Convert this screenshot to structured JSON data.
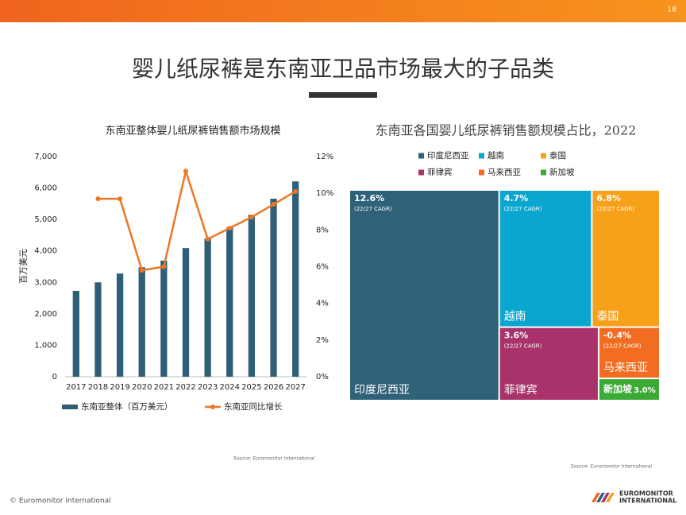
{
  "header": {
    "page_number": "18",
    "title": "婴儿纸尿裤是东南亚卫品市场最大的子品类"
  },
  "chart_data": [
    {
      "type": "bar_line",
      "title": "东南亚整体婴儿纸尿裤销售额市场规模",
      "y_label": "百万美元",
      "categories": [
        "2017",
        "2018",
        "2019",
        "2020",
        "2021",
        "2022",
        "2023",
        "2024",
        "2025",
        "2026",
        "2027"
      ],
      "series": [
        {
          "name": "东南亚整体（百万美元）",
          "type": "bar",
          "color": "#2e5f77",
          "values": [
            2730,
            3000,
            3280,
            3480,
            3690,
            4090,
            4390,
            4750,
            5150,
            5660,
            6210
          ]
        },
        {
          "name": "东南亚同比增长",
          "type": "line",
          "axis": "y2",
          "color": "#ee7623",
          "values": [
            null,
            9.7,
            9.7,
            5.8,
            6.0,
            11.2,
            7.5,
            8.1,
            8.7,
            9.4,
            10.1
          ]
        }
      ],
      "ylim": [
        0,
        7000
      ],
      "yticks": [
        0,
        {
          "value": 1000,
          "label": "1,000"
        },
        {
          "value": 2000,
          "label": "2,000"
        },
        {
          "value": 3000,
          "label": "3,000"
        },
        {
          "value": 4000,
          "label": "4,000"
        },
        {
          "value": 5000,
          "label": "5,000"
        },
        {
          "value": 6000,
          "label": "6,000"
        },
        {
          "value": 7000,
          "label": "7,000"
        }
      ],
      "y2lim": [
        0,
        12
      ],
      "y2ticks": [
        {
          "value": 0,
          "label": "0%"
        },
        {
          "value": 2,
          "label": "2%"
        },
        {
          "value": 4,
          "label": "4%"
        },
        {
          "value": 6,
          "label": "6%"
        },
        {
          "value": 8,
          "label": "8%"
        },
        {
          "value": 10,
          "label": "10%"
        },
        {
          "value": 12,
          "label": "12%"
        }
      ],
      "grid": false,
      "legend": "bottom",
      "source": "Source: Euromonitor International"
    },
    {
      "type": "treemap",
      "title": "东南亚各国婴儿纸尿裤销售额规模占比，2022",
      "categories": [
        "印度尼西亚",
        "越南",
        "泰国",
        "菲律宾",
        "马来西亚",
        "新加坡"
      ],
      "colors": [
        "#2f6179",
        "#0ba6cf",
        "#f7a11a",
        "#a8336a",
        "#f26c21",
        "#3aaa35"
      ],
      "values": [
        48.3,
        19.6,
        14.2,
        11.2,
        4.8,
        2.0
      ],
      "cagr_values": [
        12.6,
        4.7,
        6.8,
        3.6,
        -0.4,
        3.0
      ],
      "cagr_labels": [
        "12.6%",
        "4.7%",
        "6.8%",
        "3.6%",
        "-0.4%",
        "3.0%"
      ],
      "cagr_note": "(22/27 CAGR)",
      "legend": "top",
      "source": "Source: Euromonitor International"
    }
  ],
  "footer": {
    "copyright": "© Euromonitor International",
    "logo": [
      "EUROMONITOR",
      "INTERNATIONAL"
    ]
  }
}
